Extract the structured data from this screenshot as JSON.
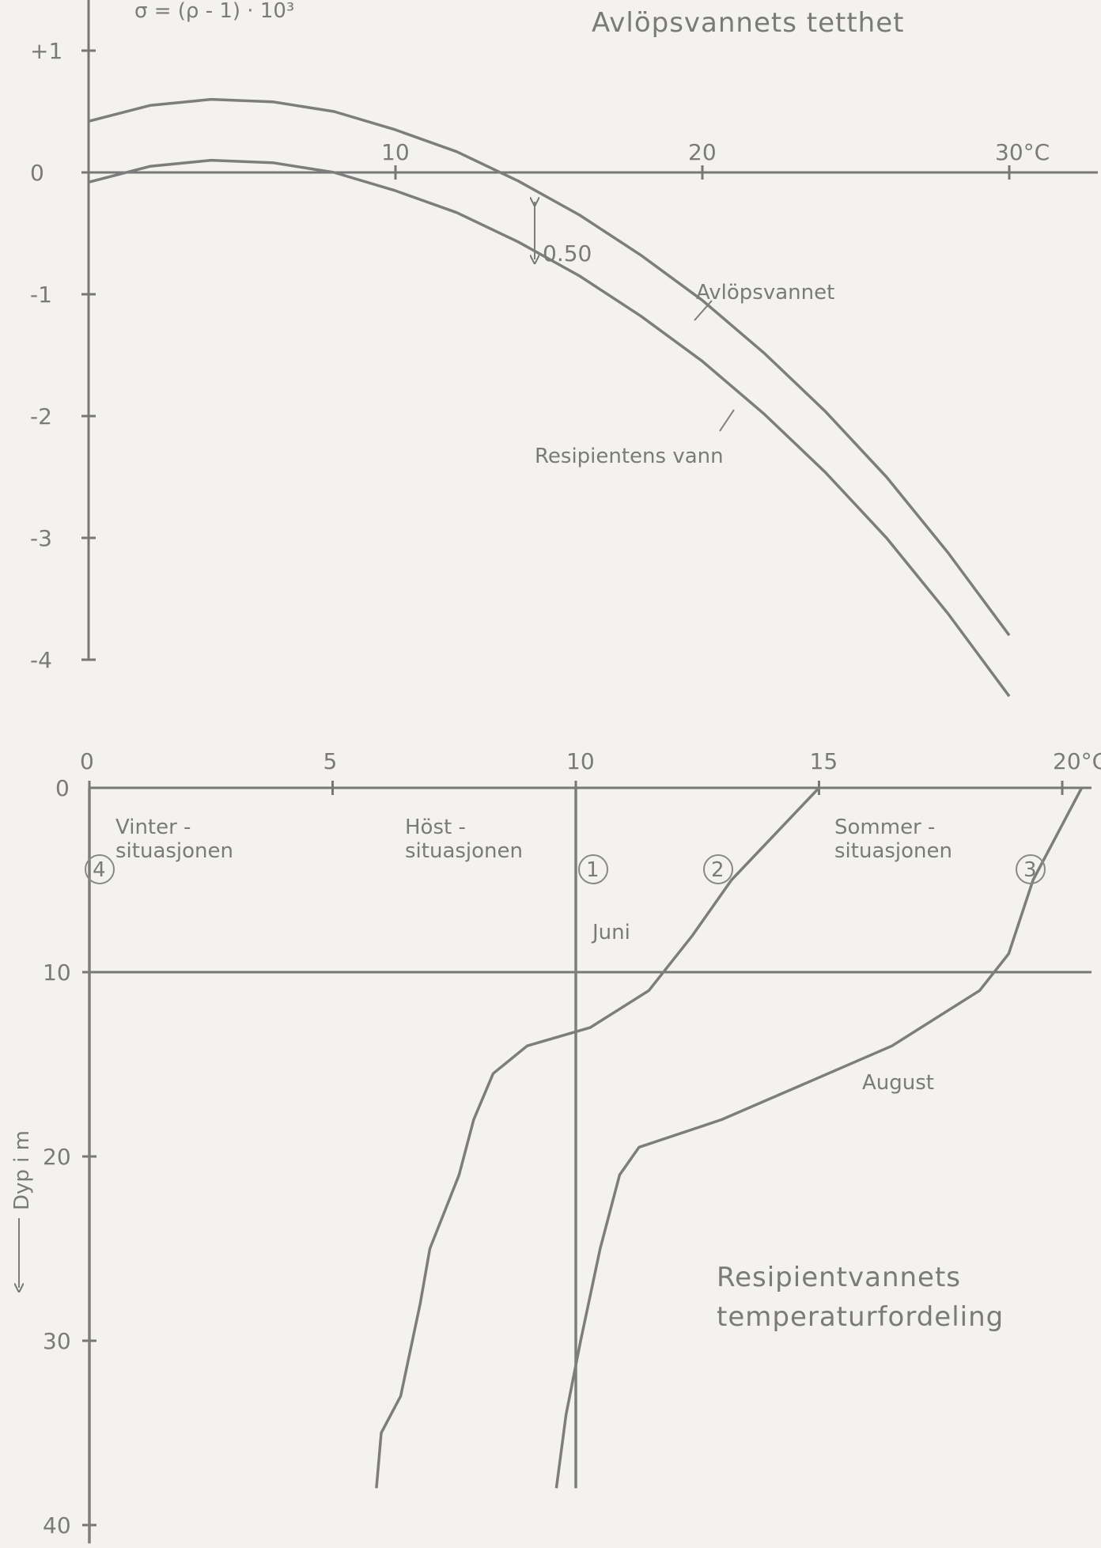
{
  "chart_data": [
    {
      "type": "line",
      "title": "Avlöpsvannets tetthet",
      "formula": "σ = (ρ - 1) · 10³",
      "xlabel": "°C",
      "x_tick_labels": [
        "10",
        "20",
        "30°C"
      ],
      "y_tick_labels": [
        "+1",
        "0",
        "-1",
        "-2",
        "-3",
        "-4"
      ],
      "xlim": [
        -0.2,
        33.5
      ],
      "ylim": [
        -4.3,
        1.4
      ],
      "grid": false,
      "series": [
        {
          "name": "Avlöpsvannet",
          "x": [
            0,
            2,
            4,
            6,
            8,
            10,
            12,
            14,
            16,
            18,
            20,
            22,
            24,
            26,
            28,
            30
          ],
          "y": [
            0.42,
            0.55,
            0.6,
            0.58,
            0.5,
            0.35,
            0.17,
            -0.07,
            -0.35,
            -0.68,
            -1.05,
            -1.48,
            -1.96,
            -2.5,
            -3.12,
            -3.8
          ]
        },
        {
          "name": "Resipientens vann",
          "x": [
            0,
            2,
            4,
            6,
            8,
            10,
            12,
            14,
            16,
            18,
            20,
            22,
            24,
            26,
            28,
            30
          ],
          "y": [
            -0.08,
            0.05,
            0.1,
            0.08,
            0.0,
            -0.15,
            -0.33,
            -0.57,
            -0.85,
            -1.18,
            -1.55,
            -1.98,
            -2.46,
            -3.0,
            -3.62,
            -4.3
          ]
        }
      ],
      "annotations": [
        {
          "text": "0.50",
          "x": 14.6,
          "y": -0.35
        }
      ]
    },
    {
      "type": "line",
      "title": "Resipientvannets temperaturfordeling",
      "xlabel": "°C",
      "ylabel": "Dyp i m",
      "x_tick_labels": [
        "0",
        "5",
        "10",
        "15",
        "20°C"
      ],
      "y_tick_labels": [
        "0",
        "10",
        "20",
        "30",
        "40"
      ],
      "xlim": [
        0,
        20.6
      ],
      "ylim": [
        0,
        41
      ],
      "reference_line_depth": 10,
      "grid": false,
      "series": [
        {
          "name": "Vinter-situasjonen",
          "marker": "4",
          "x": [
            0,
            0
          ],
          "y": [
            0,
            41
          ]
        },
        {
          "name": "Höst-situasjonen",
          "marker": "1",
          "x": [
            10,
            10
          ],
          "y": [
            0,
            38
          ]
        },
        {
          "name": "Juni",
          "marker": "2",
          "x": [
            15.0,
            13.2,
            12.4,
            11.5,
            10.3,
            9.0,
            8.3,
            7.9,
            7.6,
            7.3,
            7.0,
            6.8,
            6.4,
            6.0,
            5.9
          ],
          "y": [
            0,
            5,
            8,
            11,
            13,
            14,
            15.5,
            18,
            21,
            23,
            25,
            28,
            33,
            35,
            38
          ]
        },
        {
          "name": "August",
          "marker": "3",
          "x": [
            20.4,
            19.4,
            18.9,
            18.3,
            16.5,
            13.0,
            11.3,
            10.9,
            10.5,
            10.1,
            9.8,
            9.6
          ],
          "y": [
            0,
            5,
            9,
            11,
            14,
            18,
            19.5,
            21,
            25,
            30,
            34,
            38
          ]
        }
      ]
    }
  ],
  "labels": {
    "title_top": "Avlöpsvannets tetthet",
    "formula": "σ = (ρ - 1) · 10³",
    "series_avlop": "Avlöpsvannet",
    "series_resip": "Resipientens vann",
    "gap_label": "0.50",
    "vinter_1": "Vinter -",
    "vinter_2": "situasjonen",
    "host_1": "Höst -",
    "host_2": "situasjonen",
    "sommer_1": "Sommer -",
    "sommer_2": "situasjonen",
    "juni": "Juni",
    "august": "August",
    "ylabel_bottom": "Dyp i m",
    "title_bottom_1": "Resipientvannets",
    "title_bottom_2": "temperaturfordeling",
    "marker_1": "1",
    "marker_2": "2",
    "marker_3": "3",
    "marker_4": "4"
  }
}
